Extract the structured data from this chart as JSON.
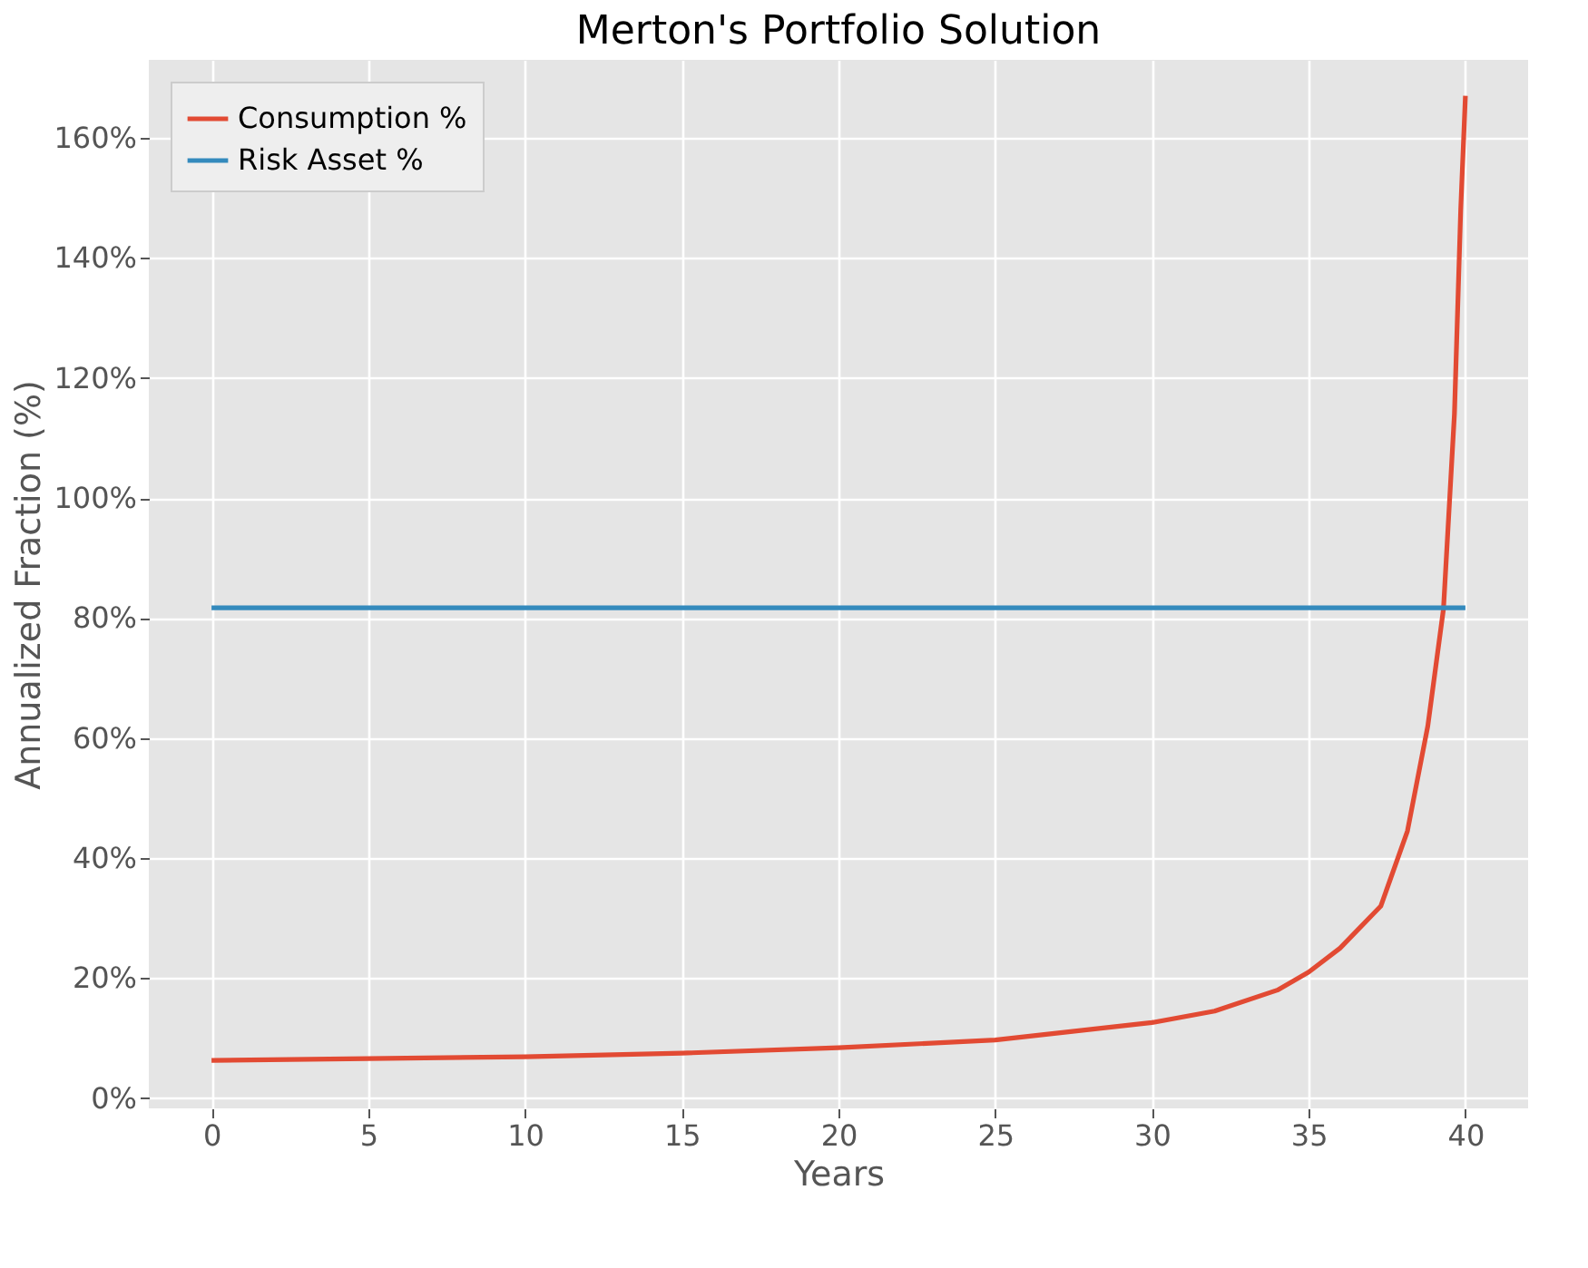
{
  "chart_data": {
    "type": "line",
    "title": "Merton's Portfolio Solution",
    "xlabel": "Years",
    "ylabel": "Annualized Fraction (%)",
    "series": [
      {
        "name": "Consumption %",
        "color": "#e24a33",
        "x": [
          0,
          5,
          10,
          15,
          20,
          25,
          30,
          32,
          34,
          35,
          36,
          37.3,
          38.15,
          38.8,
          39.3,
          39.65,
          39.85,
          40
        ],
        "values": [
          6.3,
          6.6,
          6.9,
          7.5,
          8.4,
          9.7,
          12.6,
          14.5,
          18,
          21,
          25,
          32,
          44.5,
          62,
          81.5,
          114,
          148,
          167
        ]
      },
      {
        "name": "Risk Asset %",
        "color": "#348abd",
        "x": [
          0,
          40
        ],
        "values": [
          81.7,
          81.7
        ]
      }
    ],
    "xlim": [
      -2,
      42
    ],
    "ylim": [
      -1.7,
      173
    ],
    "xticks": [
      0,
      5,
      10,
      15,
      20,
      25,
      30,
      35,
      40
    ],
    "yticks": [
      {
        "value": 0,
        "label": "0%"
      },
      {
        "value": 20,
        "label": "20%"
      },
      {
        "value": 40,
        "label": "40%"
      },
      {
        "value": 60,
        "label": "60%"
      },
      {
        "value": 80,
        "label": "80%"
      },
      {
        "value": 100,
        "label": "100%"
      },
      {
        "value": 120,
        "label": "120%"
      },
      {
        "value": 140,
        "label": "140%"
      },
      {
        "value": 160,
        "label": "160%"
      }
    ],
    "grid": true,
    "legend": "top left"
  }
}
